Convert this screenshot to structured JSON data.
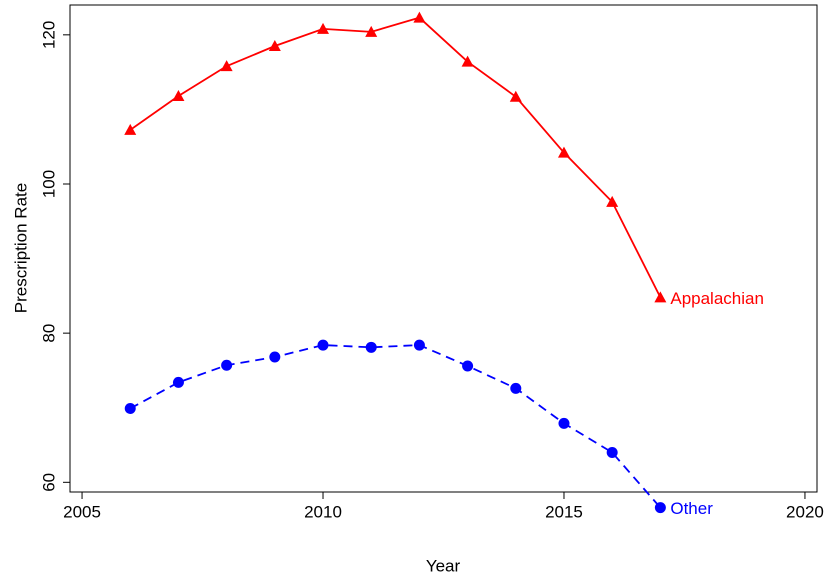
{
  "chart_data": {
    "type": "line",
    "x_label": "Year",
    "y_label": "Prescription Rate",
    "x": [
      2006,
      2007,
      2008,
      2009,
      2010,
      2011,
      2012,
      2013,
      2014,
      2015,
      2016,
      2017
    ],
    "series": [
      {
        "name": "Appalachian",
        "color": "#ff0000",
        "marker": "triangle",
        "dashed": false,
        "values": [
          107.25,
          111.8,
          115.8,
          118.5,
          120.8,
          120.4,
          122.3,
          116.4,
          111.7,
          104.2,
          97.6,
          84.8
        ]
      },
      {
        "name": "Other",
        "color": "#0000ff",
        "marker": "circle",
        "dashed": true,
        "values": [
          69.9,
          73.4,
          75.7,
          76.8,
          78.4,
          78.1,
          78.4,
          75.6,
          72.6,
          67.9,
          64.0,
          56.6
        ]
      }
    ],
    "xlim": [
      2004.75,
      2020.25
    ],
    "xticks": [
      2005,
      2010,
      2015,
      2020
    ],
    "ylim": [
      58.7,
      124
    ],
    "yticks": [
      60,
      80,
      100,
      120
    ],
    "grid": false
  }
}
